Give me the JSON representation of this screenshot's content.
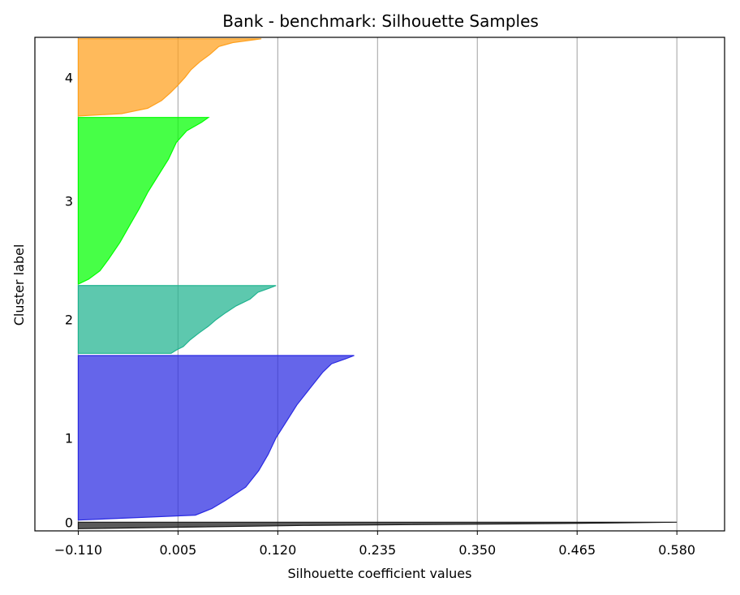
{
  "chart_data": {
    "type": "area",
    "subtype": "silhouette-plot",
    "title": "Bank - benchmark: Silhouette Samples",
    "xlabel": "Silhouette coefficient values",
    "ylabel": "Cluster label",
    "xlim": [
      -0.16,
      0.635
    ],
    "x_ticks": [
      -0.11,
      0.005,
      0.12,
      0.235,
      0.35,
      0.465,
      0.58
    ],
    "x_tick_labels": [
      "−0.110",
      "0.005",
      "0.120",
      "0.235",
      "0.350",
      "0.465",
      "0.580"
    ],
    "grid": "vertical",
    "clusters": [
      {
        "label": "0",
        "color": "#1a1a1a",
        "y_range": [
          0.3,
          1.2
        ],
        "profile": [
          [
            0,
            0.58
          ],
          [
            0.2,
            0.45
          ],
          [
            0.5,
            0.15
          ],
          [
            1,
            -0.11
          ]
        ]
      },
      {
        "label": "1",
        "color": "#2a2ae2",
        "y_range": [
          1.5,
          24.3
        ],
        "profile": [
          [
            0,
            0.208
          ],
          [
            0.02,
            0.198
          ],
          [
            0.05,
            0.182
          ],
          [
            0.1,
            0.172
          ],
          [
            0.2,
            0.157
          ],
          [
            0.3,
            0.142
          ],
          [
            0.4,
            0.13
          ],
          [
            0.5,
            0.118
          ],
          [
            0.6,
            0.109
          ],
          [
            0.7,
            0.098
          ],
          [
            0.8,
            0.083
          ],
          [
            0.88,
            0.06
          ],
          [
            0.93,
            0.044
          ],
          [
            0.97,
            0.025
          ],
          [
            1,
            -0.11
          ]
        ]
      },
      {
        "label": "2",
        "color": "#1fb38f",
        "y_range": [
          24.6,
          34.0
        ],
        "profile": [
          [
            0,
            0.118
          ],
          [
            0.04,
            0.11
          ],
          [
            0.1,
            0.097
          ],
          [
            0.2,
            0.088
          ],
          [
            0.3,
            0.072
          ],
          [
            0.4,
            0.06
          ],
          [
            0.5,
            0.049
          ],
          [
            0.6,
            0.04
          ],
          [
            0.7,
            0.029
          ],
          [
            0.8,
            0.019
          ],
          [
            0.9,
            0.011
          ],
          [
            0.95,
            0.003
          ],
          [
            1,
            -0.003
          ]
        ]
      },
      {
        "label": "3",
        "color": "#00ff00",
        "y_range": [
          34.2,
          57.3
        ],
        "profile": [
          [
            0,
            0.04
          ],
          [
            0.03,
            0.032
          ],
          [
            0.08,
            0.015
          ],
          [
            0.15,
            0.003
          ],
          [
            0.25,
            -0.006
          ],
          [
            0.35,
            -0.018
          ],
          [
            0.45,
            -0.03
          ],
          [
            0.55,
            -0.04
          ],
          [
            0.65,
            -0.051
          ],
          [
            0.75,
            -0.062
          ],
          [
            0.85,
            -0.075
          ],
          [
            0.92,
            -0.085
          ],
          [
            0.97,
            -0.098
          ],
          [
            1,
            -0.11
          ]
        ]
      },
      {
        "label": "4",
        "color": "#ffa01c",
        "y_range": [
          57.5,
          68.2
        ],
        "profile": [
          [
            0,
            0.101
          ],
          [
            0.05,
            0.068
          ],
          [
            0.1,
            0.052
          ],
          [
            0.2,
            0.042
          ],
          [
            0.3,
            0.03
          ],
          [
            0.4,
            0.02
          ],
          [
            0.5,
            0.013
          ],
          [
            0.6,
            0.005
          ],
          [
            0.7,
            -0.004
          ],
          [
            0.8,
            -0.014
          ],
          [
            0.9,
            -0.03
          ],
          [
            0.97,
            -0.06
          ],
          [
            1,
            -0.11
          ]
        ]
      }
    ],
    "ylim": [
      0,
      68.4
    ]
  }
}
